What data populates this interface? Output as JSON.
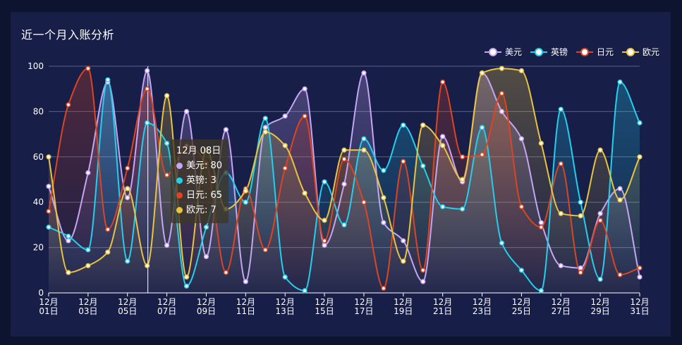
{
  "page": {
    "title": "近一个月入账分析"
  },
  "colors": {
    "美元": "#c6a5f5",
    "英镑": "#22cfee",
    "日元": "#dd4422",
    "欧元": "#eac33f",
    "axis": "#ffffff",
    "grid": "#5a6185"
  },
  "tooltip": {
    "header": "12月 08日",
    "rows": [
      {
        "label": "美元: 80",
        "color": "#c6a5f5"
      },
      {
        "label": "英镑: 3",
        "color": "#22cfee"
      },
      {
        "label": "日元: 65",
        "color": "#dd4422"
      },
      {
        "label": "欧元: 7",
        "color": "#eac33f"
      }
    ]
  },
  "chart_data": {
    "type": "line",
    "smooth": true,
    "area": true,
    "title": "近一个月入账分析",
    "ylim": [
      0,
      100
    ],
    "yticks": [
      0,
      20,
      40,
      60,
      80,
      100
    ],
    "grid": true,
    "legend_position": "top-right",
    "x_month": "12月",
    "x": [
      "01日",
      "02日",
      "03日",
      "04日",
      "05日",
      "06日",
      "07日",
      "08日",
      "09日",
      "10日",
      "11日",
      "12日",
      "13日",
      "14日",
      "15日",
      "16日",
      "17日",
      "18日",
      "19日",
      "20日",
      "21日",
      "22日",
      "23日",
      "24日",
      "25日",
      "26日",
      "27日",
      "28日",
      "29日",
      "30日",
      "31日"
    ],
    "xtick_every": 2,
    "series": [
      {
        "name": "美元",
        "color": "#c6a5f5",
        "values": [
          47,
          23,
          53,
          93,
          42,
          98,
          21,
          80,
          16,
          72,
          5,
          73,
          78,
          90,
          21,
          48,
          97,
          31,
          23,
          5,
          69,
          49,
          97,
          80,
          68,
          31,
          12,
          11,
          35,
          46,
          7
        ]
      },
      {
        "name": "英镑",
        "color": "#22cfee",
        "values": [
          29,
          25,
          19,
          94,
          14,
          75,
          66,
          3,
          29,
          53,
          40,
          77,
          7,
          1,
          49,
          30,
          68,
          54,
          74,
          56,
          38,
          37,
          73,
          22,
          10,
          1,
          81,
          40,
          6,
          93,
          75
        ]
      },
      {
        "name": "日元",
        "color": "#dd4422",
        "values": [
          36,
          83,
          99,
          28,
          55,
          90,
          52,
          65,
          57,
          9,
          46,
          19,
          55,
          78,
          23,
          59,
          40,
          2,
          58,
          10,
          93,
          60,
          61,
          88,
          38,
          29,
          57,
          9,
          32,
          8,
          11
        ]
      },
      {
        "name": "欧元",
        "color": "#eac33f",
        "values": [
          60,
          9,
          12,
          18,
          46,
          12,
          87,
          7,
          63,
          37,
          45,
          71,
          65,
          44,
          32,
          63,
          63,
          42,
          14,
          74,
          65,
          50,
          97,
          99,
          98,
          66,
          35,
          34,
          63,
          41,
          60
        ]
      }
    ]
  }
}
